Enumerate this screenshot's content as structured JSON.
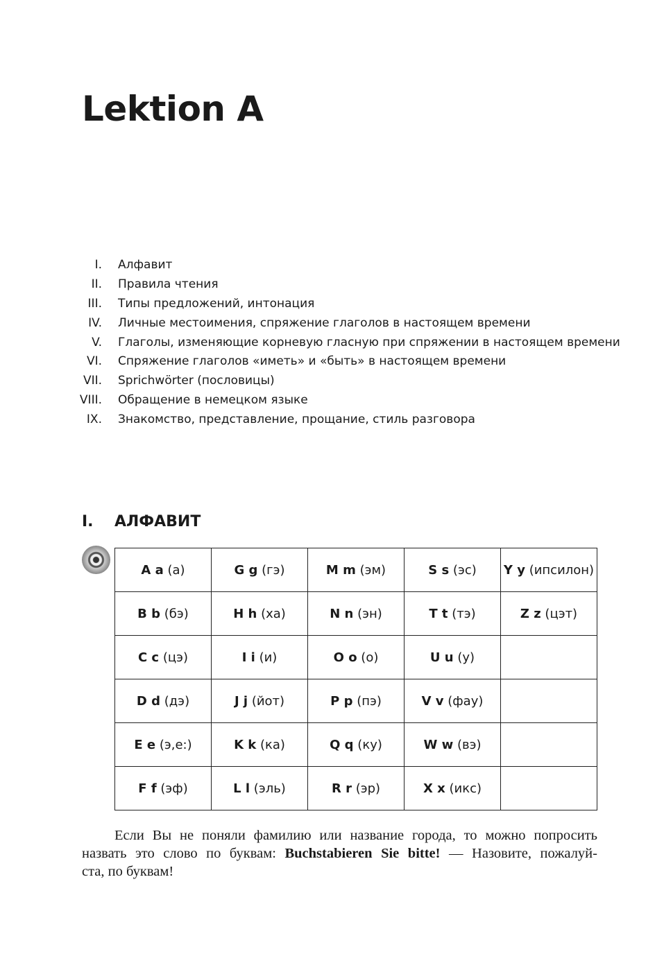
{
  "title": "Lektion A",
  "toc": [
    {
      "num": "I.",
      "text": "Алфавит"
    },
    {
      "num": "II.",
      "text": "Правила чтения"
    },
    {
      "num": "III.",
      "text": "Типы предложений, интонация"
    },
    {
      "num": "IV.",
      "text": "Личные местоимения, спряжение глаголов в настоящем времени"
    },
    {
      "num": "V.",
      "text": "Глаголы, изменяющие корневую гласную при спряжении в настоящем времени"
    },
    {
      "num": "VI.",
      "text": "Спряжение глаголов «иметь» и «быть» в настоящем времени"
    },
    {
      "num": "VII.",
      "text": "Sprichwörter (пословицы)"
    },
    {
      "num": "VIII.",
      "text": "Обращение в немецком языке"
    },
    {
      "num": "IX.",
      "text": "Знакомство, представление, прощание, стиль разговора"
    }
  ],
  "section": {
    "num": "I.",
    "title": "АЛФАВИТ",
    "audio_icon": "cd-icon"
  },
  "alphabet": [
    [
      {
        "l": "A a",
        "p": "(а)"
      },
      {
        "l": "G g",
        "p": "(гэ)"
      },
      {
        "l": "M m",
        "p": "(эм)"
      },
      {
        "l": "S s",
        "p": "(эс)"
      },
      {
        "l": "Y y",
        "p": "(ипсилон)"
      }
    ],
    [
      {
        "l": "B b",
        "p": "(бэ)"
      },
      {
        "l": "H h",
        "p": "(ха)"
      },
      {
        "l": "N n",
        "p": "(эн)"
      },
      {
        "l": "T t",
        "p": "(тэ)"
      },
      {
        "l": "Z z",
        "p": "(цэт)"
      }
    ],
    [
      {
        "l": "C c",
        "p": "(цэ)"
      },
      {
        "l": "I i",
        "p": "(и)"
      },
      {
        "l": "O o",
        "p": "(о)"
      },
      {
        "l": "U u",
        "p": "(у)"
      },
      {
        "l": "",
        "p": ""
      }
    ],
    [
      {
        "l": "D d",
        "p": "(дэ)"
      },
      {
        "l": "J j",
        "p": "(йот)"
      },
      {
        "l": "P p",
        "p": "(пэ)"
      },
      {
        "l": "V v",
        "p": "(фау)"
      },
      {
        "l": "",
        "p": ""
      }
    ],
    [
      {
        "l": "E e",
        "p": "(э,е:)"
      },
      {
        "l": "K k",
        "p": "(ка)"
      },
      {
        "l": "Q q",
        "p": "(ку)"
      },
      {
        "l": "W w",
        "p": "(вэ)"
      },
      {
        "l": "",
        "p": ""
      }
    ],
    [
      {
        "l": "F f",
        "p": "(эф)"
      },
      {
        "l": "L l",
        "p": "(эль)"
      },
      {
        "l": "R r",
        "p": "(эр)"
      },
      {
        "l": "X x",
        "p": "(икс)"
      },
      {
        "l": "",
        "p": ""
      }
    ]
  ],
  "paragraph": {
    "line1": "Если Вы не поняли фамилию или название города, то можно попросить",
    "line2_a": "назвать это слово по буквам: ",
    "line2_bold": "Buchstabieren Sie bitte!",
    "line2_b": " — Назовите, пожалуй-",
    "line3": "ста, по буквам!"
  }
}
